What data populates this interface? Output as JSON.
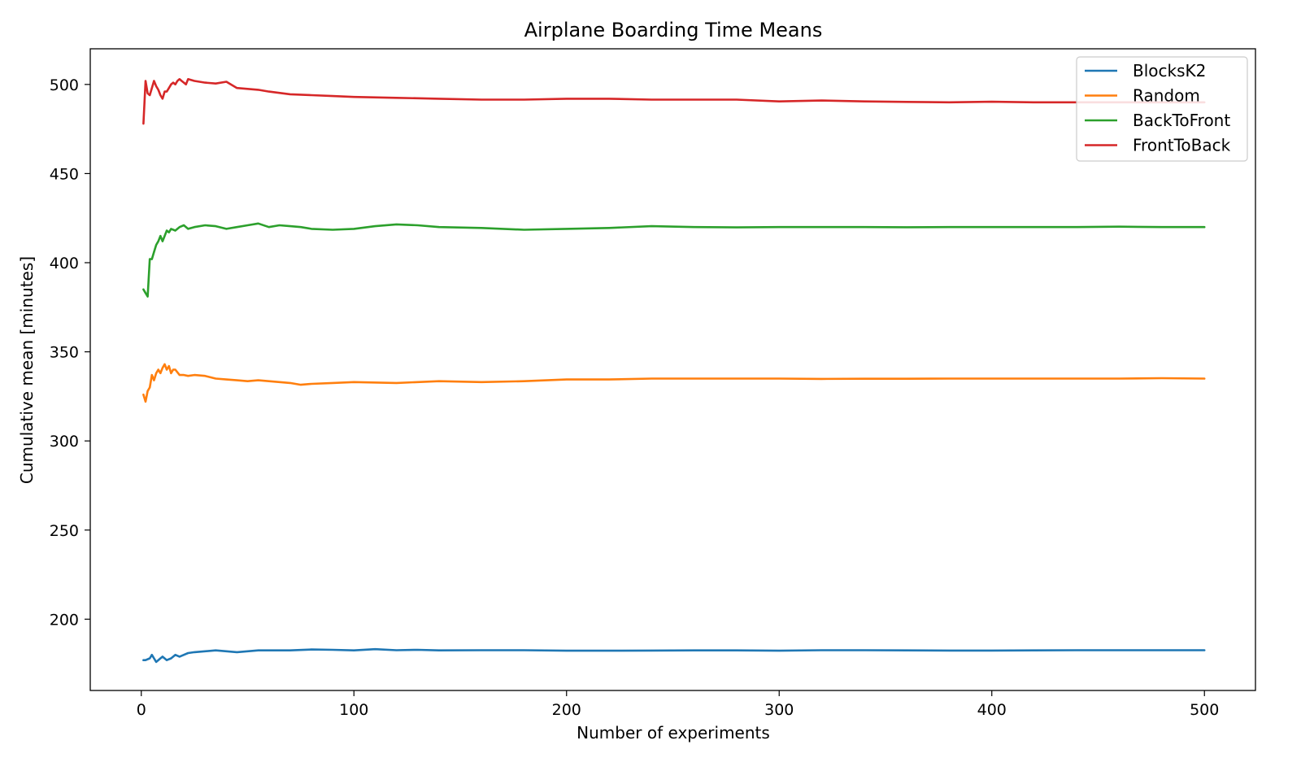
{
  "chart_data": {
    "type": "line",
    "title": "Airplane Boarding Time Means",
    "xlabel": "Number of experiments",
    "ylabel": "Cumulative mean [minutes]",
    "xlim": [
      -24,
      524
    ],
    "ylim": [
      160,
      520
    ],
    "xticks": [
      0,
      100,
      200,
      300,
      400,
      500
    ],
    "yticks": [
      200,
      250,
      300,
      350,
      400,
      450,
      500
    ],
    "grid": false,
    "legend_position": "top-right",
    "series": [
      {
        "name": "BlocksK2",
        "color": "#1f77b4",
        "x": [
          1,
          2,
          4,
          5,
          6,
          7,
          8,
          9,
          10,
          12,
          14,
          15,
          16,
          18,
          20,
          22,
          25,
          30,
          35,
          40,
          45,
          50,
          55,
          60,
          70,
          80,
          90,
          100,
          110,
          120,
          130,
          140,
          160,
          180,
          200,
          220,
          240,
          260,
          280,
          300,
          320,
          340,
          360,
          380,
          400,
          420,
          440,
          460,
          480,
          500
        ],
        "y": [
          177,
          177,
          178,
          180,
          178,
          176,
          177,
          178,
          179,
          177,
          178,
          179,
          180,
          179,
          180,
          181,
          181.5,
          182,
          182.5,
          182,
          181.5,
          182,
          182.5,
          182.5,
          182.5,
          183,
          182.8,
          182.5,
          183.2,
          182.6,
          182.8,
          182.5,
          182.6,
          182.6,
          182.3,
          182.3,
          182.4,
          182.5,
          182.5,
          182.3,
          182.6,
          182.6,
          182.5,
          182.4,
          182.4,
          182.5,
          182.6,
          182.6,
          182.6,
          182.6
        ]
      },
      {
        "name": "Random",
        "color": "#ff7f0e",
        "x": [
          1,
          2,
          3,
          4,
          5,
          6,
          7,
          8,
          9,
          10,
          11,
          12,
          13,
          14,
          15,
          16,
          18,
          20,
          22,
          25,
          30,
          35,
          40,
          45,
          50,
          55,
          60,
          65,
          70,
          75,
          80,
          90,
          100,
          120,
          140,
          160,
          180,
          200,
          220,
          240,
          260,
          280,
          300,
          320,
          340,
          360,
          380,
          400,
          420,
          440,
          460,
          480,
          500
        ],
        "y": [
          326,
          322,
          328,
          330,
          337,
          334,
          338,
          340,
          338,
          341,
          343,
          340,
          342,
          338,
          340,
          340,
          337,
          337,
          336.5,
          337,
          336.5,
          335,
          334.5,
          334,
          333.5,
          334,
          333.5,
          333,
          332.5,
          331.5,
          332,
          332.5,
          333,
          332.5,
          333.5,
          333,
          333.5,
          334.5,
          334.5,
          335,
          335,
          335,
          335,
          334.8,
          334.9,
          334.9,
          335,
          335,
          335,
          335,
          335,
          335.2,
          335
        ]
      },
      {
        "name": "BackToFront",
        "color": "#2ca02c",
        "x": [
          1,
          2,
          3,
          4,
          5,
          6,
          7,
          8,
          9,
          10,
          11,
          12,
          13,
          14,
          16,
          18,
          20,
          22,
          25,
          30,
          35,
          40,
          45,
          50,
          55,
          60,
          65,
          70,
          75,
          80,
          90,
          100,
          110,
          120,
          130,
          140,
          160,
          180,
          200,
          220,
          240,
          260,
          280,
          300,
          320,
          340,
          360,
          380,
          400,
          420,
          440,
          460,
          480,
          500
        ],
        "y": [
          385,
          383,
          381,
          402,
          402,
          406,
          410,
          412,
          415,
          412,
          415,
          418,
          417,
          419,
          418,
          420,
          421,
          419,
          420,
          421,
          420.5,
          419,
          420,
          421,
          422,
          420,
          421,
          420.5,
          420,
          419,
          418.5,
          419,
          420.5,
          421.5,
          421,
          420,
          419.5,
          418.5,
          419,
          419.5,
          420.5,
          420,
          419.8,
          420,
          420,
          420,
          419.9,
          420,
          420,
          420,
          420,
          420.2,
          420,
          420
        ]
      },
      {
        "name": "FrontToBack",
        "color": "#d62728",
        "x": [
          1,
          2,
          3,
          4,
          5,
          6,
          7,
          8,
          9,
          10,
          11,
          12,
          13,
          14,
          15,
          16,
          17,
          18,
          19,
          20,
          21,
          22,
          25,
          30,
          35,
          40,
          45,
          50,
          55,
          60,
          70,
          80,
          90,
          100,
          120,
          140,
          160,
          180,
          200,
          220,
          240,
          260,
          280,
          300,
          320,
          340,
          360,
          380,
          400,
          420,
          440,
          460,
          480,
          500
        ],
        "y": [
          478,
          502,
          495,
          494,
          498,
          502,
          499,
          497,
          494,
          492,
          496,
          496,
          498,
          500,
          501,
          500,
          502,
          503,
          502,
          501,
          500,
          503,
          502,
          501,
          500.5,
          501.5,
          498,
          497.5,
          497,
          496,
          494.5,
          494,
          493.5,
          493,
          492.5,
          492,
          491.5,
          491.5,
          492,
          492,
          491.5,
          491.5,
          491.5,
          490.5,
          491,
          490.5,
          490.2,
          490,
          490.3,
          490,
          490,
          490,
          490,
          490
        ]
      }
    ]
  }
}
